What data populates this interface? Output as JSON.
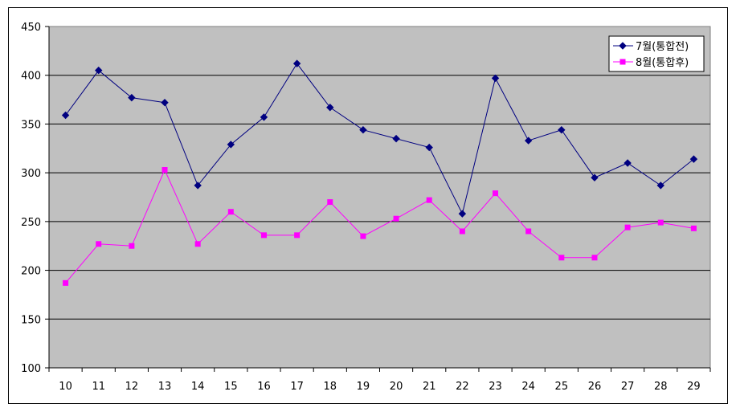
{
  "chart_data": {
    "type": "line",
    "title": "",
    "xlabel": "",
    "ylabel": "",
    "categories": [
      "10",
      "11",
      "12",
      "13",
      "14",
      "15",
      "16",
      "17",
      "18",
      "19",
      "20",
      "21",
      "22",
      "23",
      "24",
      "25",
      "26",
      "27",
      "28",
      "29"
    ],
    "ylim": [
      100,
      450
    ],
    "yticks": [
      100,
      150,
      200,
      250,
      300,
      350,
      400,
      450
    ],
    "grid": true,
    "legend_position": "top-right",
    "plot_background": "#c0c0c0",
    "series": [
      {
        "name": "7월(통합전)",
        "color": "#000080",
        "marker": "diamond",
        "values": [
          359,
          405,
          377,
          372,
          287,
          329,
          357,
          412,
          367,
          344,
          335,
          326,
          258,
          397,
          333,
          344,
          295,
          310,
          287,
          314
        ]
      },
      {
        "name": "8월(통합후)",
        "color": "#ff00ff",
        "marker": "square",
        "values": [
          187,
          227,
          225,
          303,
          227,
          260,
          236,
          236,
          270,
          235,
          253,
          272,
          240,
          279,
          240,
          213,
          213,
          244,
          249,
          243
        ]
      }
    ]
  }
}
